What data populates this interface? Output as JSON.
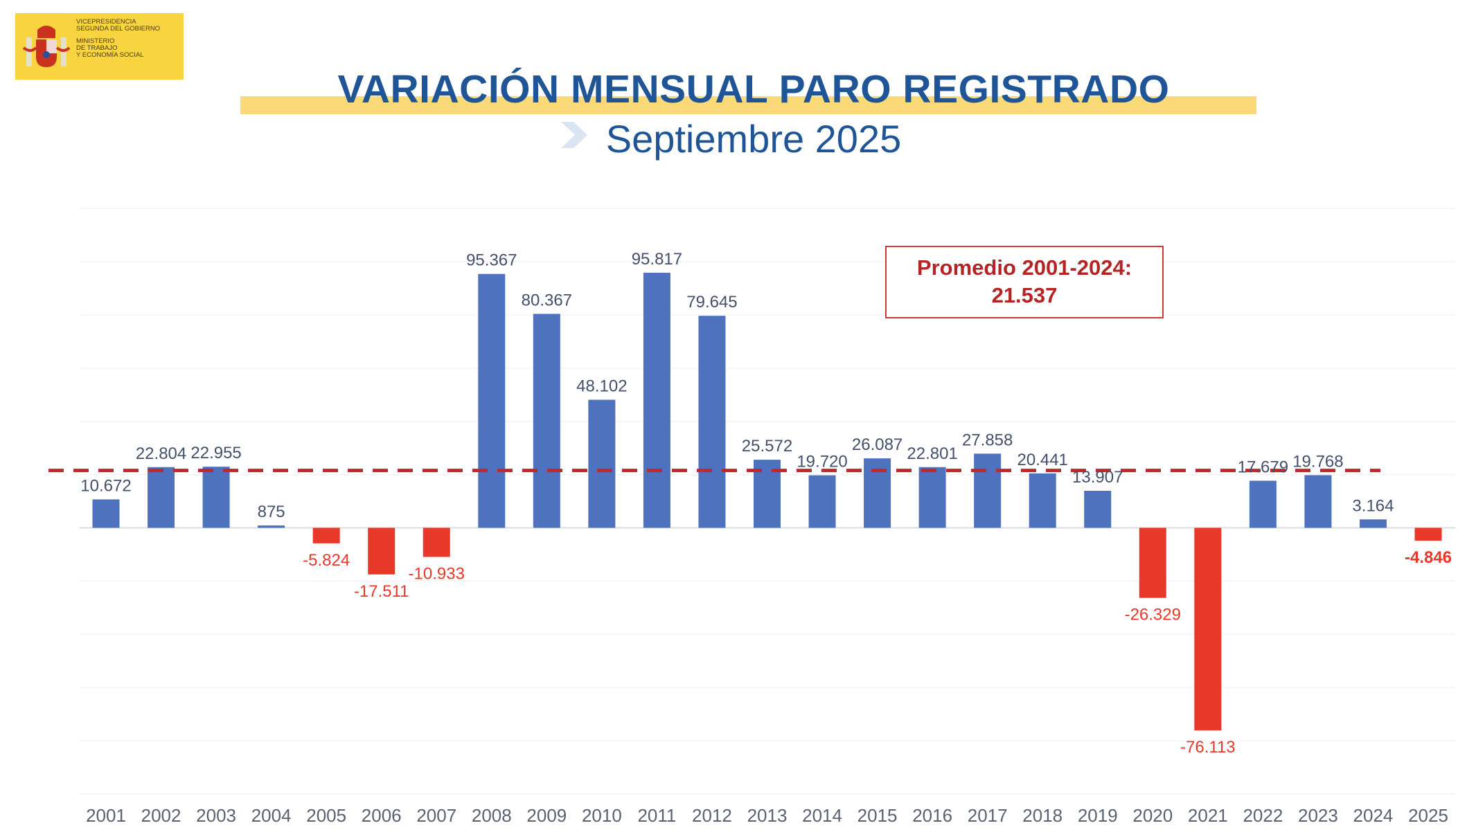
{
  "logo": {
    "line1": "VICEPRESIDENCIA",
    "line2": "SEGUNDA DEL GOBIERNO",
    "line3": "MINISTERIO",
    "line4": "DE TRABAJO",
    "line5": "Y ECONOMÍA SOCIAL"
  },
  "header": {
    "title": "VARIACIÓN MENSUAL PARO REGISTRADO",
    "subtitle": "Septiembre 2025"
  },
  "chart_data": {
    "type": "bar",
    "title": "VARIACIÓN MENSUAL PARO REGISTRADO",
    "subtitle": "Septiembre 2025",
    "categories": [
      "2001",
      "2002",
      "2003",
      "2004",
      "2005",
      "2006",
      "2007",
      "2008",
      "2009",
      "2010",
      "2011",
      "2012",
      "2013",
      "2014",
      "2015",
      "2016",
      "2017",
      "2018",
      "2019",
      "2020",
      "2021",
      "2022",
      "2023",
      "2024",
      "2025"
    ],
    "values": [
      10672,
      22804,
      22955,
      875,
      -5824,
      -17511,
      -10933,
      95367,
      80367,
      48102,
      95817,
      79645,
      25572,
      19720,
      26087,
      22801,
      27858,
      20441,
      13907,
      -26329,
      -76113,
      17679,
      19768,
      3164,
      -4846
    ],
    "labels": [
      "10.672",
      "22.804",
      "22.955",
      "875",
      "-5.824",
      "-17.511",
      "-10.933",
      "95.367",
      "80.367",
      "48.102",
      "95.817",
      "79.645",
      "25.572",
      "19.720",
      "26.087",
      "22.801",
      "27.858",
      "20.441",
      "13.907",
      "-26.329",
      "-76.113",
      "17.679",
      "19.768",
      "3.164",
      "-4.846"
    ],
    "ylim": [
      -100000,
      120000
    ],
    "grid": true,
    "average": {
      "label": "Promedio 2001-2024:",
      "value_label": "21.537",
      "value": 21537
    },
    "colors": {
      "positive": "#4f72be",
      "negative": "#e8382a",
      "average_line": "#c0282b",
      "label_text": "#44506b",
      "negative_label": "#e8382a"
    }
  }
}
